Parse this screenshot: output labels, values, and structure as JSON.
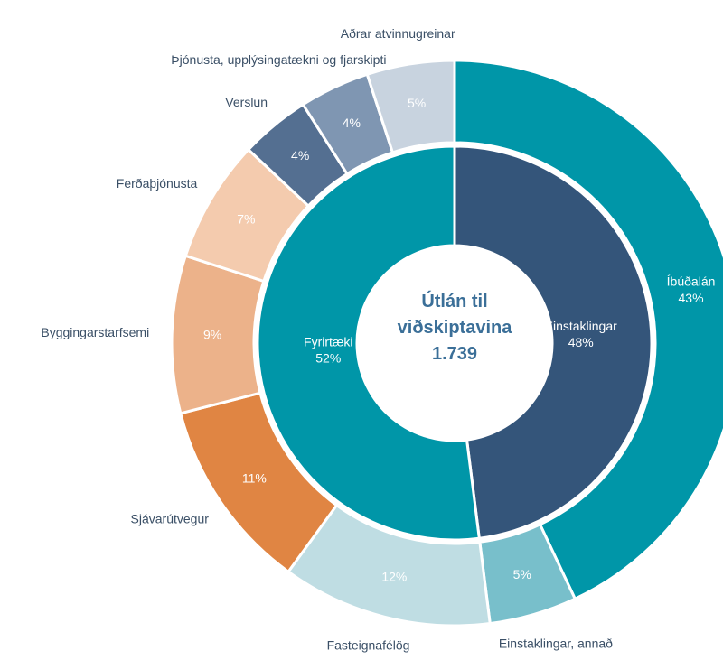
{
  "chart_data": {
    "type": "donut",
    "center_title": "Útlán til viðskiptavina",
    "center_value": "1.739",
    "inner": {
      "categories": [
        "Einstaklingar",
        "Fyrirtæki"
      ],
      "values": [
        48,
        52
      ],
      "value_labels": [
        "48%",
        "52%"
      ],
      "colors": [
        "#34557a",
        "#0096a8"
      ]
    },
    "outer": {
      "categories": [
        "Íbúðalán",
        "Einstaklingar, annað",
        "Fasteignafélög",
        "Sjávarútvegur",
        "Byggingarstarfsemi",
        "Ferðaþjónusta",
        "Verslun",
        "Þjónusta, upplýsingatækni og fjarskipti",
        "Aðrar atvinnugreinar"
      ],
      "values": [
        43,
        5,
        12,
        11,
        9,
        7,
        4,
        4,
        5
      ],
      "value_labels": [
        "43%",
        "5%",
        "12%",
        "11%",
        "9%",
        "7%",
        "4%",
        "4%",
        "5%"
      ],
      "colors": [
        "#0096a8",
        "#78bfcb",
        "#bfdde3",
        "#e08543",
        "#ecb28a",
        "#f4cbae",
        "#546f91",
        "#7f96b2",
        "#c8d3df"
      ]
    }
  }
}
